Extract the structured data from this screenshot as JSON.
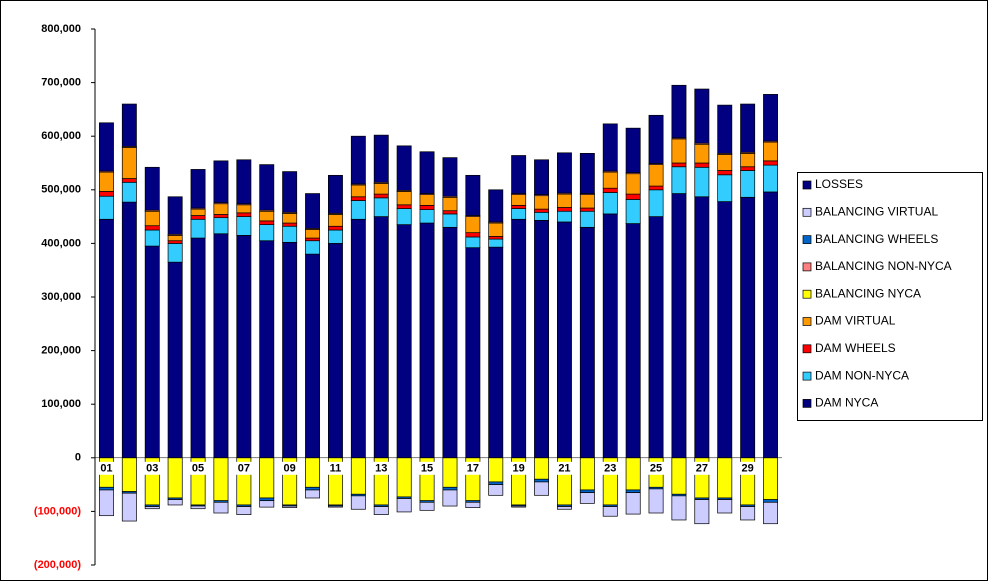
{
  "chart_data": {
    "type": "stacked_bar",
    "categories": [
      "01",
      null,
      "03",
      null,
      "05",
      null,
      "07",
      null,
      "09",
      null,
      "11",
      null,
      "13",
      null,
      "15",
      null,
      "17",
      null,
      "19",
      null,
      "21",
      null,
      "23",
      null,
      "25",
      null,
      "27",
      null,
      "29",
      null
    ],
    "ylim": [
      -200000,
      800000
    ],
    "yticks": [
      {
        "value": -200000,
        "label": "(200,000)"
      },
      {
        "value": -100000,
        "label": "(100,000)"
      },
      0,
      {
        "value": 100000,
        "label": "100,000"
      },
      {
        "value": 200000,
        "label": "200,000"
      },
      {
        "value": 300000,
        "label": "300,000"
      },
      {
        "value": 400000,
        "label": "400,000"
      },
      {
        "value": 500000,
        "label": "500,000"
      },
      {
        "value": 600000,
        "label": "600,000"
      },
      {
        "value": 700000,
        "label": "700,000"
      },
      {
        "value": 800000,
        "label": "800,000"
      }
    ],
    "grid": false,
    "legend": "right",
    "series": [
      {
        "name": "DAM NYCA",
        "color": "#000080",
        "values": [
          445000,
          477000,
          395000,
          365000,
          410000,
          418000,
          415000,
          405000,
          402000,
          380000,
          400000,
          445000,
          450000,
          435000,
          438000,
          430000,
          392000,
          393000,
          445000,
          443000,
          440000,
          430000,
          455000,
          437000,
          450000,
          493000,
          487000,
          478000,
          486000,
          496000
        ]
      },
      {
        "name": "DAM NON-NYCA",
        "color": "#33CCFF",
        "values": [
          43000,
          37000,
          30000,
          35000,
          35000,
          30000,
          35000,
          30000,
          30000,
          25000,
          25000,
          35000,
          35000,
          30000,
          25000,
          25000,
          20000,
          15000,
          20000,
          15000,
          20000,
          30000,
          40000,
          45000,
          50000,
          50000,
          55000,
          50000,
          50000,
          50000
        ]
      },
      {
        "name": "DAM WHEELS",
        "color": "#FF0000",
        "values": [
          9000,
          7000,
          8000,
          5000,
          7000,
          6000,
          7000,
          7000,
          6000,
          5000,
          7000,
          7000,
          7000,
          7000,
          8000,
          6000,
          8000,
          5000,
          6000,
          6000,
          7000,
          6000,
          8000,
          10000,
          7000,
          7000,
          8000,
          8000,
          7000,
          8000
        ]
      },
      {
        "name": "DAM VIRTUAL",
        "color": "#FF9900",
        "values": [
          36000,
          58000,
          27000,
          10000,
          12000,
          20000,
          15000,
          18000,
          18000,
          16000,
          22000,
          22000,
          20000,
          25000,
          20000,
          25000,
          30000,
          25000,
          20000,
          25000,
          25000,
          25000,
          30000,
          38000,
          40000,
          45000,
          35000,
          30000,
          25000,
          35000
        ]
      },
      {
        "name": "BALANCING NYCA",
        "color": "#FFFF00",
        "values": [
          -55000,
          -63000,
          -88000,
          -75000,
          -88000,
          -80000,
          -88000,
          -75000,
          -88000,
          -55000,
          -88000,
          -68000,
          -88000,
          -73000,
          -80000,
          -55000,
          -80000,
          -45000,
          -88000,
          -40000,
          -88000,
          -60000,
          -88000,
          -60000,
          -55000,
          -68000,
          -75000,
          -75000,
          -88000,
          -78000
        ]
      },
      {
        "name": "BALANCING NON-NYCA",
        "color": "#FF8080",
        "values": [
          2000,
          2000,
          2000,
          2000,
          2000,
          2000,
          2000,
          2000,
          2000,
          2000,
          2000,
          2000,
          2000,
          2000,
          2000,
          2000,
          2000,
          2000,
          2000,
          2000,
          2000,
          2000,
          2000,
          2000,
          2000,
          2000,
          2000,
          2000,
          2000,
          2000
        ]
      },
      {
        "name": "BALANCING WHEELS",
        "color": "#0066CC",
        "values": [
          -5000,
          -3000,
          -3000,
          -3000,
          -2000,
          -3000,
          -3000,
          -5000,
          -2000,
          -5000,
          -2000,
          -3000,
          -3000,
          -3000,
          -3000,
          -5000,
          -3000,
          -5000,
          -2000,
          -5000,
          -3000,
          -5000,
          -3000,
          -5000,
          -3000,
          -3000,
          -3000,
          -3000,
          -3000,
          -5000
        ]
      },
      {
        "name": "BALANCING VIRTUAL",
        "color": "#CCCCFF",
        "values": [
          -48000,
          -52000,
          -4000,
          -10000,
          -5000,
          -20000,
          -15000,
          -12000,
          -3000,
          -15000,
          -2000,
          -25000,
          -15000,
          -25000,
          -15000,
          -30000,
          -10000,
          -20000,
          -2000,
          -25000,
          -5000,
          -20000,
          -18000,
          -40000,
          -45000,
          -45000,
          -45000,
          -25000,
          -25000,
          -40000
        ]
      },
      {
        "name": "LOSSES",
        "color": "#000080",
        "values": [
          90000,
          79000,
          80000,
          70000,
          72000,
          78000,
          82000,
          85000,
          76000,
          65000,
          71000,
          89000,
          88000,
          83000,
          78000,
          72000,
          75000,
          60000,
          71000,
          65000,
          75000,
          75000,
          88000,
          83000,
          90000,
          98000,
          101000,
          90000,
          90000,
          87000
        ]
      }
    ]
  }
}
